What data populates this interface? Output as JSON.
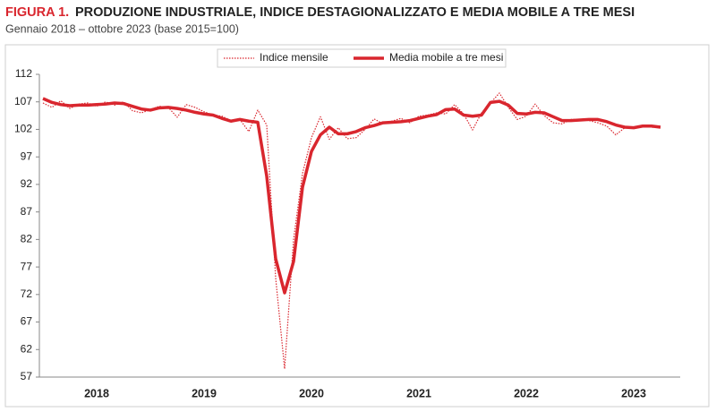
{
  "chart_data": {
    "type": "line",
    "title_label": "FIGURA 1.",
    "title": "PRODUZIONE INDUSTRIALE, INDICE DESTAGIONALIZZATO E MEDIA MOBILE A TRE MESI",
    "subtitle": "Gennaio 2018 – ottobre 2023 (base 2015=100)",
    "categories": [
      null,
      null,
      null,
      null,
      null,
      null,
      "2018",
      null,
      null,
      null,
      null,
      null,
      null,
      null,
      null,
      null,
      null,
      null,
      "2019",
      null,
      null,
      null,
      null,
      null,
      null,
      null,
      null,
      null,
      null,
      null,
      "2020",
      null,
      null,
      null,
      null,
      null,
      null,
      null,
      null,
      null,
      null,
      null,
      "2021",
      null,
      null,
      null,
      null,
      null,
      null,
      null,
      null,
      null,
      null,
      null,
      "2022",
      null,
      null,
      null,
      null,
      null,
      null,
      null,
      null,
      null,
      null,
      null,
      "2023",
      null,
      null,
      null
    ],
    "series": [
      {
        "name": "Indice mensile",
        "color": "#d9262e",
        "style": "dotted",
        "values": [
          106.8,
          106.0,
          107.2,
          105.8,
          106.6,
          106.8,
          106.2,
          107.0,
          106.4,
          107.0,
          105.4,
          105.0,
          105.6,
          106.2,
          106.0,
          104.2,
          106.5,
          106.0,
          105.2,
          104.6,
          104.4,
          103.6,
          103.8,
          101.6,
          105.5,
          102.8,
          75.0,
          58.5,
          82.0,
          94.0,
          100.5,
          104.3,
          100.2,
          102.3,
          100.3,
          100.5,
          102.0,
          103.9,
          103.0,
          103.5,
          104.0,
          103.2,
          104.4,
          104.6,
          105.0,
          104.8,
          106.5,
          104.8,
          101.9,
          105.0,
          106.8,
          108.6,
          106.0,
          103.8,
          104.4,
          106.6,
          104.5,
          103.2,
          103.0,
          103.8,
          103.8,
          103.6,
          103.2,
          102.6,
          101.0,
          102.3,
          102.4,
          102.6,
          102.4,
          102.3
        ]
      },
      {
        "name": "Media mobile a tre mesi",
        "color": "#d9262e",
        "style": "solid",
        "values": [
          107.6,
          106.9,
          106.5,
          106.3,
          106.4,
          106.4,
          106.5,
          106.6,
          106.8,
          106.7,
          106.2,
          105.7,
          105.5,
          105.9,
          106.0,
          105.8,
          105.5,
          105.1,
          104.8,
          104.6,
          104.0,
          103.5,
          103.8,
          103.5,
          103.3,
          93.5,
          78.5,
          72.3,
          78.0,
          91.5,
          98.0,
          101.0,
          102.4,
          101.2,
          101.2,
          101.6,
          102.3,
          102.7,
          103.2,
          103.3,
          103.4,
          103.6,
          104.0,
          104.4,
          104.7,
          105.6,
          105.7,
          104.6,
          104.4,
          104.6,
          106.9,
          107.1,
          106.4,
          104.9,
          104.8,
          105.1,
          105.0,
          104.3,
          103.6,
          103.6,
          103.7,
          103.8,
          103.8,
          103.4,
          102.8,
          102.4,
          102.3,
          102.6,
          102.6,
          102.4
        ]
      }
    ],
    "ylim": [
      57,
      112
    ],
    "yticks": [
      57,
      62,
      67,
      72,
      77,
      82,
      87,
      92,
      97,
      102,
      107,
      112
    ],
    "legend": "top"
  }
}
